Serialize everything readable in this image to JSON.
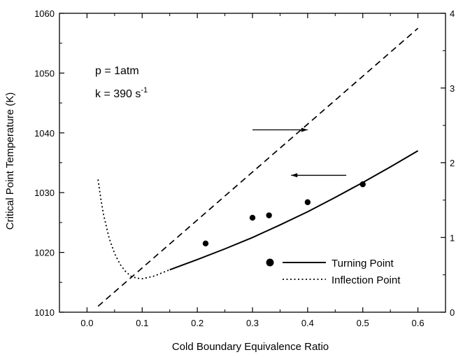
{
  "chart_data": {
    "type": "line",
    "xlabel": "Cold Boundary Equivalence Ratio",
    "ylabel": "Critical Point Temperature (K)",
    "xlim": [
      -0.05,
      0.65
    ],
    "ylim": [
      1010,
      1060
    ],
    "y2lim": [
      0,
      4
    ],
    "x_ticks": [
      "0.0",
      "0.1",
      "0.2",
      "0.3",
      "0.4",
      "0.5",
      "0.6"
    ],
    "x_tick_values": [
      0.0,
      0.1,
      0.2,
      0.3,
      0.4,
      0.5,
      0.6
    ],
    "y_ticks": [
      "1010",
      "1020",
      "1030",
      "1040",
      "1050",
      "1060"
    ],
    "y_tick_values": [
      1010,
      1020,
      1030,
      1040,
      1050,
      1060
    ],
    "y2_ticks": [
      "0",
      "1",
      "2",
      "3",
      "4"
    ],
    "y2_tick_values": [
      0,
      1,
      2,
      3,
      4
    ],
    "annotations": {
      "pressure": "p = 1atm",
      "strain_prefix": "k = 390 s",
      "strain_exponent": "-1"
    },
    "legend": {
      "turning": "Turning Point",
      "inflection": "Inflection Point"
    },
    "series": [
      {
        "name": "Turning Point",
        "style": "solid",
        "axis": "left",
        "x": [
          0.15,
          0.2,
          0.25,
          0.3,
          0.35,
          0.4,
          0.45,
          0.5,
          0.55,
          0.6
        ],
        "y": [
          1017.1,
          1018.8,
          1020.6,
          1022.5,
          1024.6,
          1026.8,
          1029.2,
          1031.7,
          1034.3,
          1037.0
        ]
      },
      {
        "name": "Inflection Point",
        "style": "dotted",
        "axis": "left",
        "x": [
          0.02,
          0.025,
          0.03,
          0.04,
          0.05,
          0.06,
          0.07,
          0.08,
          0.09,
          0.1,
          0.12,
          0.15
        ],
        "y": [
          1032.2,
          1029.0,
          1026.3,
          1022.4,
          1019.8,
          1018.0,
          1016.8,
          1016.0,
          1015.7,
          1015.6,
          1016.0,
          1017.1
        ]
      },
      {
        "style": "dashed",
        "axis": "right",
        "x": [
          0.02,
          0.6
        ],
        "y": [
          0.08,
          3.8
        ]
      },
      {
        "style": "markers",
        "axis": "left",
        "x": [
          0.215,
          0.3,
          0.33,
          0.4,
          0.5
        ],
        "y": [
          1021.5,
          1025.8,
          1026.2,
          1028.4,
          1031.4
        ]
      }
    ],
    "arrows": [
      {
        "points_to": "right",
        "x_from": 0.3,
        "x_to": 0.4,
        "y": 1040.5
      },
      {
        "points_to": "left",
        "x_from": 0.47,
        "x_to": 0.37,
        "y": 1032.9
      }
    ],
    "grid": false,
    "legend_placement": "bottom-right"
  },
  "colors": {
    "ink": "#000000",
    "background": "#ffffff"
  }
}
